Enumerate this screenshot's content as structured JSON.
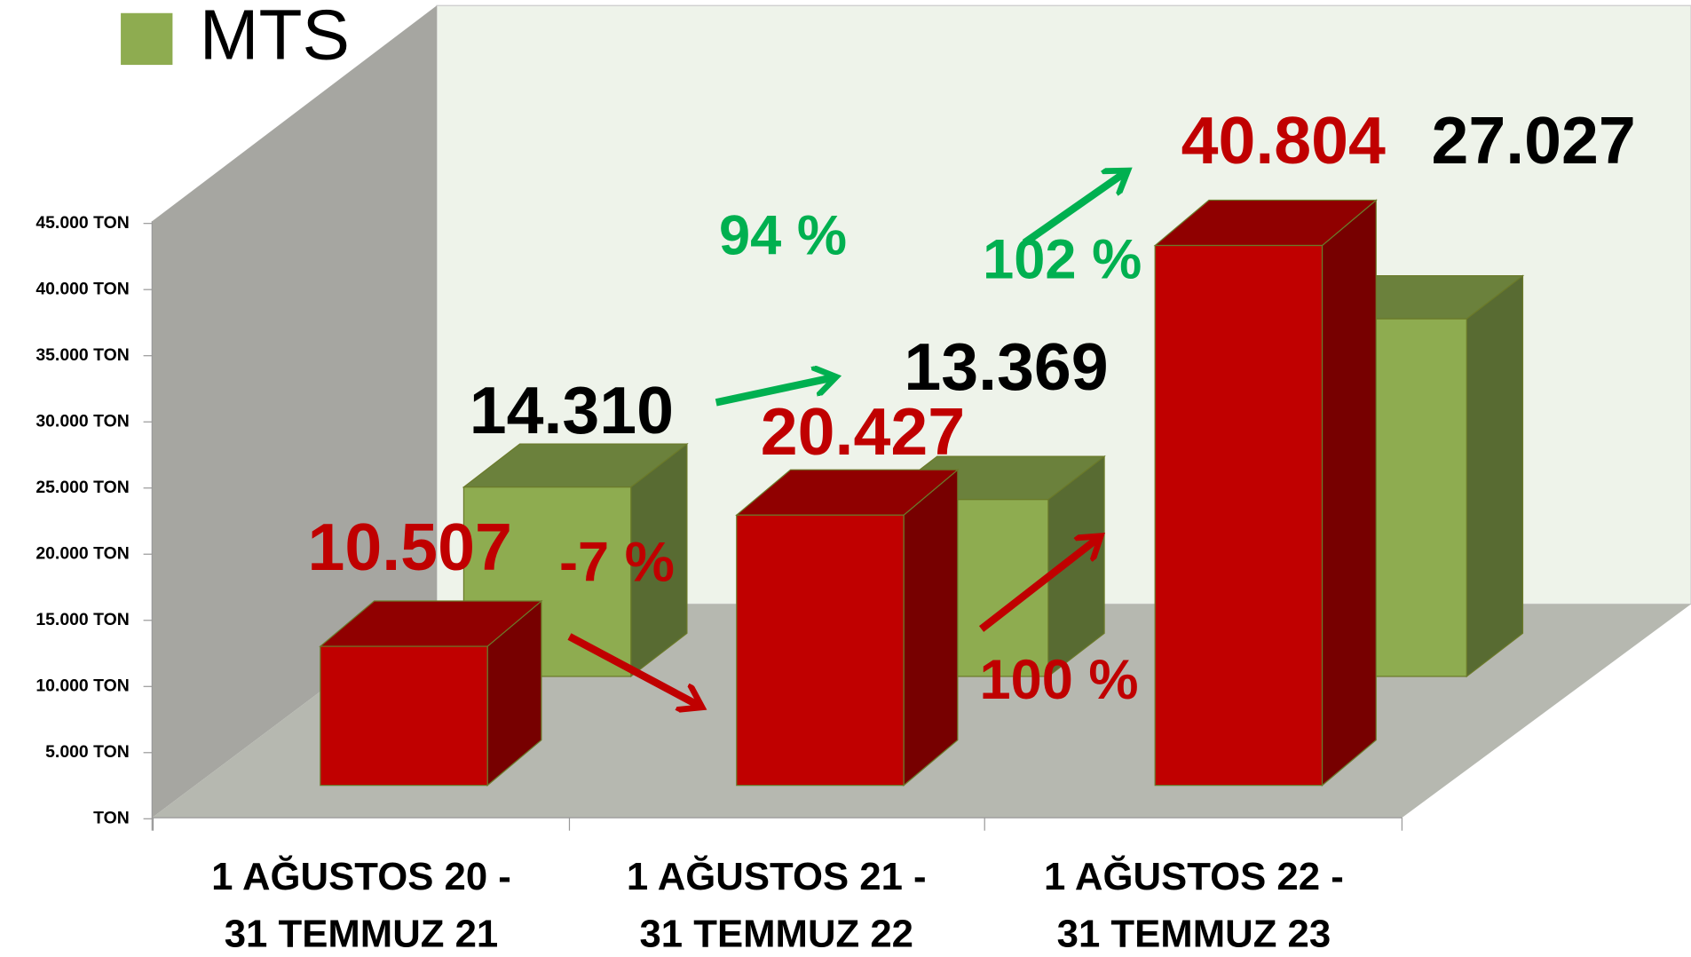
{
  "chart_data": {
    "type": "bar3d",
    "categories": [
      [
        "1 AĞUSTOS 20 -",
        "31 TEMMUZ 21"
      ],
      [
        "1 AĞUSTOS 21 -",
        "31 TEMMUZ 22"
      ],
      [
        "1 AĞUSTOS 22 -",
        "31 TEMMUZ 23"
      ]
    ],
    "series": [
      {
        "color": "#c00000",
        "values": [
          10507,
          20427,
          40804
        ],
        "value_labels": [
          "10.507",
          "20.427",
          "40.804"
        ]
      },
      {
        "name": "MTS",
        "color": "#8eac50",
        "values": [
          14310,
          13369,
          27027
        ],
        "value_labels": [
          "14.310",
          "13.369",
          "27.027"
        ]
      }
    ],
    "ylim": [
      0,
      45000
    ],
    "yticks": [
      {
        "value": 0,
        "label": "TON"
      },
      {
        "value": 5000,
        "label": "5.000 TON"
      },
      {
        "value": 10000,
        "label": "10.000 TON"
      },
      {
        "value": 15000,
        "label": "15.000 TON"
      },
      {
        "value": 20000,
        "label": "20.000 TON"
      },
      {
        "value": 25000,
        "label": "25.000 TON"
      },
      {
        "value": 30000,
        "label": "30.000 TON"
      },
      {
        "value": 35000,
        "label": "35.000 TON"
      },
      {
        "value": 40000,
        "label": "40.000 TON"
      },
      {
        "value": 45000,
        "label": "45.000 TON"
      }
    ],
    "annotations": [
      "-7 %",
      "94 %",
      "100 %",
      "102 %"
    ]
  }
}
